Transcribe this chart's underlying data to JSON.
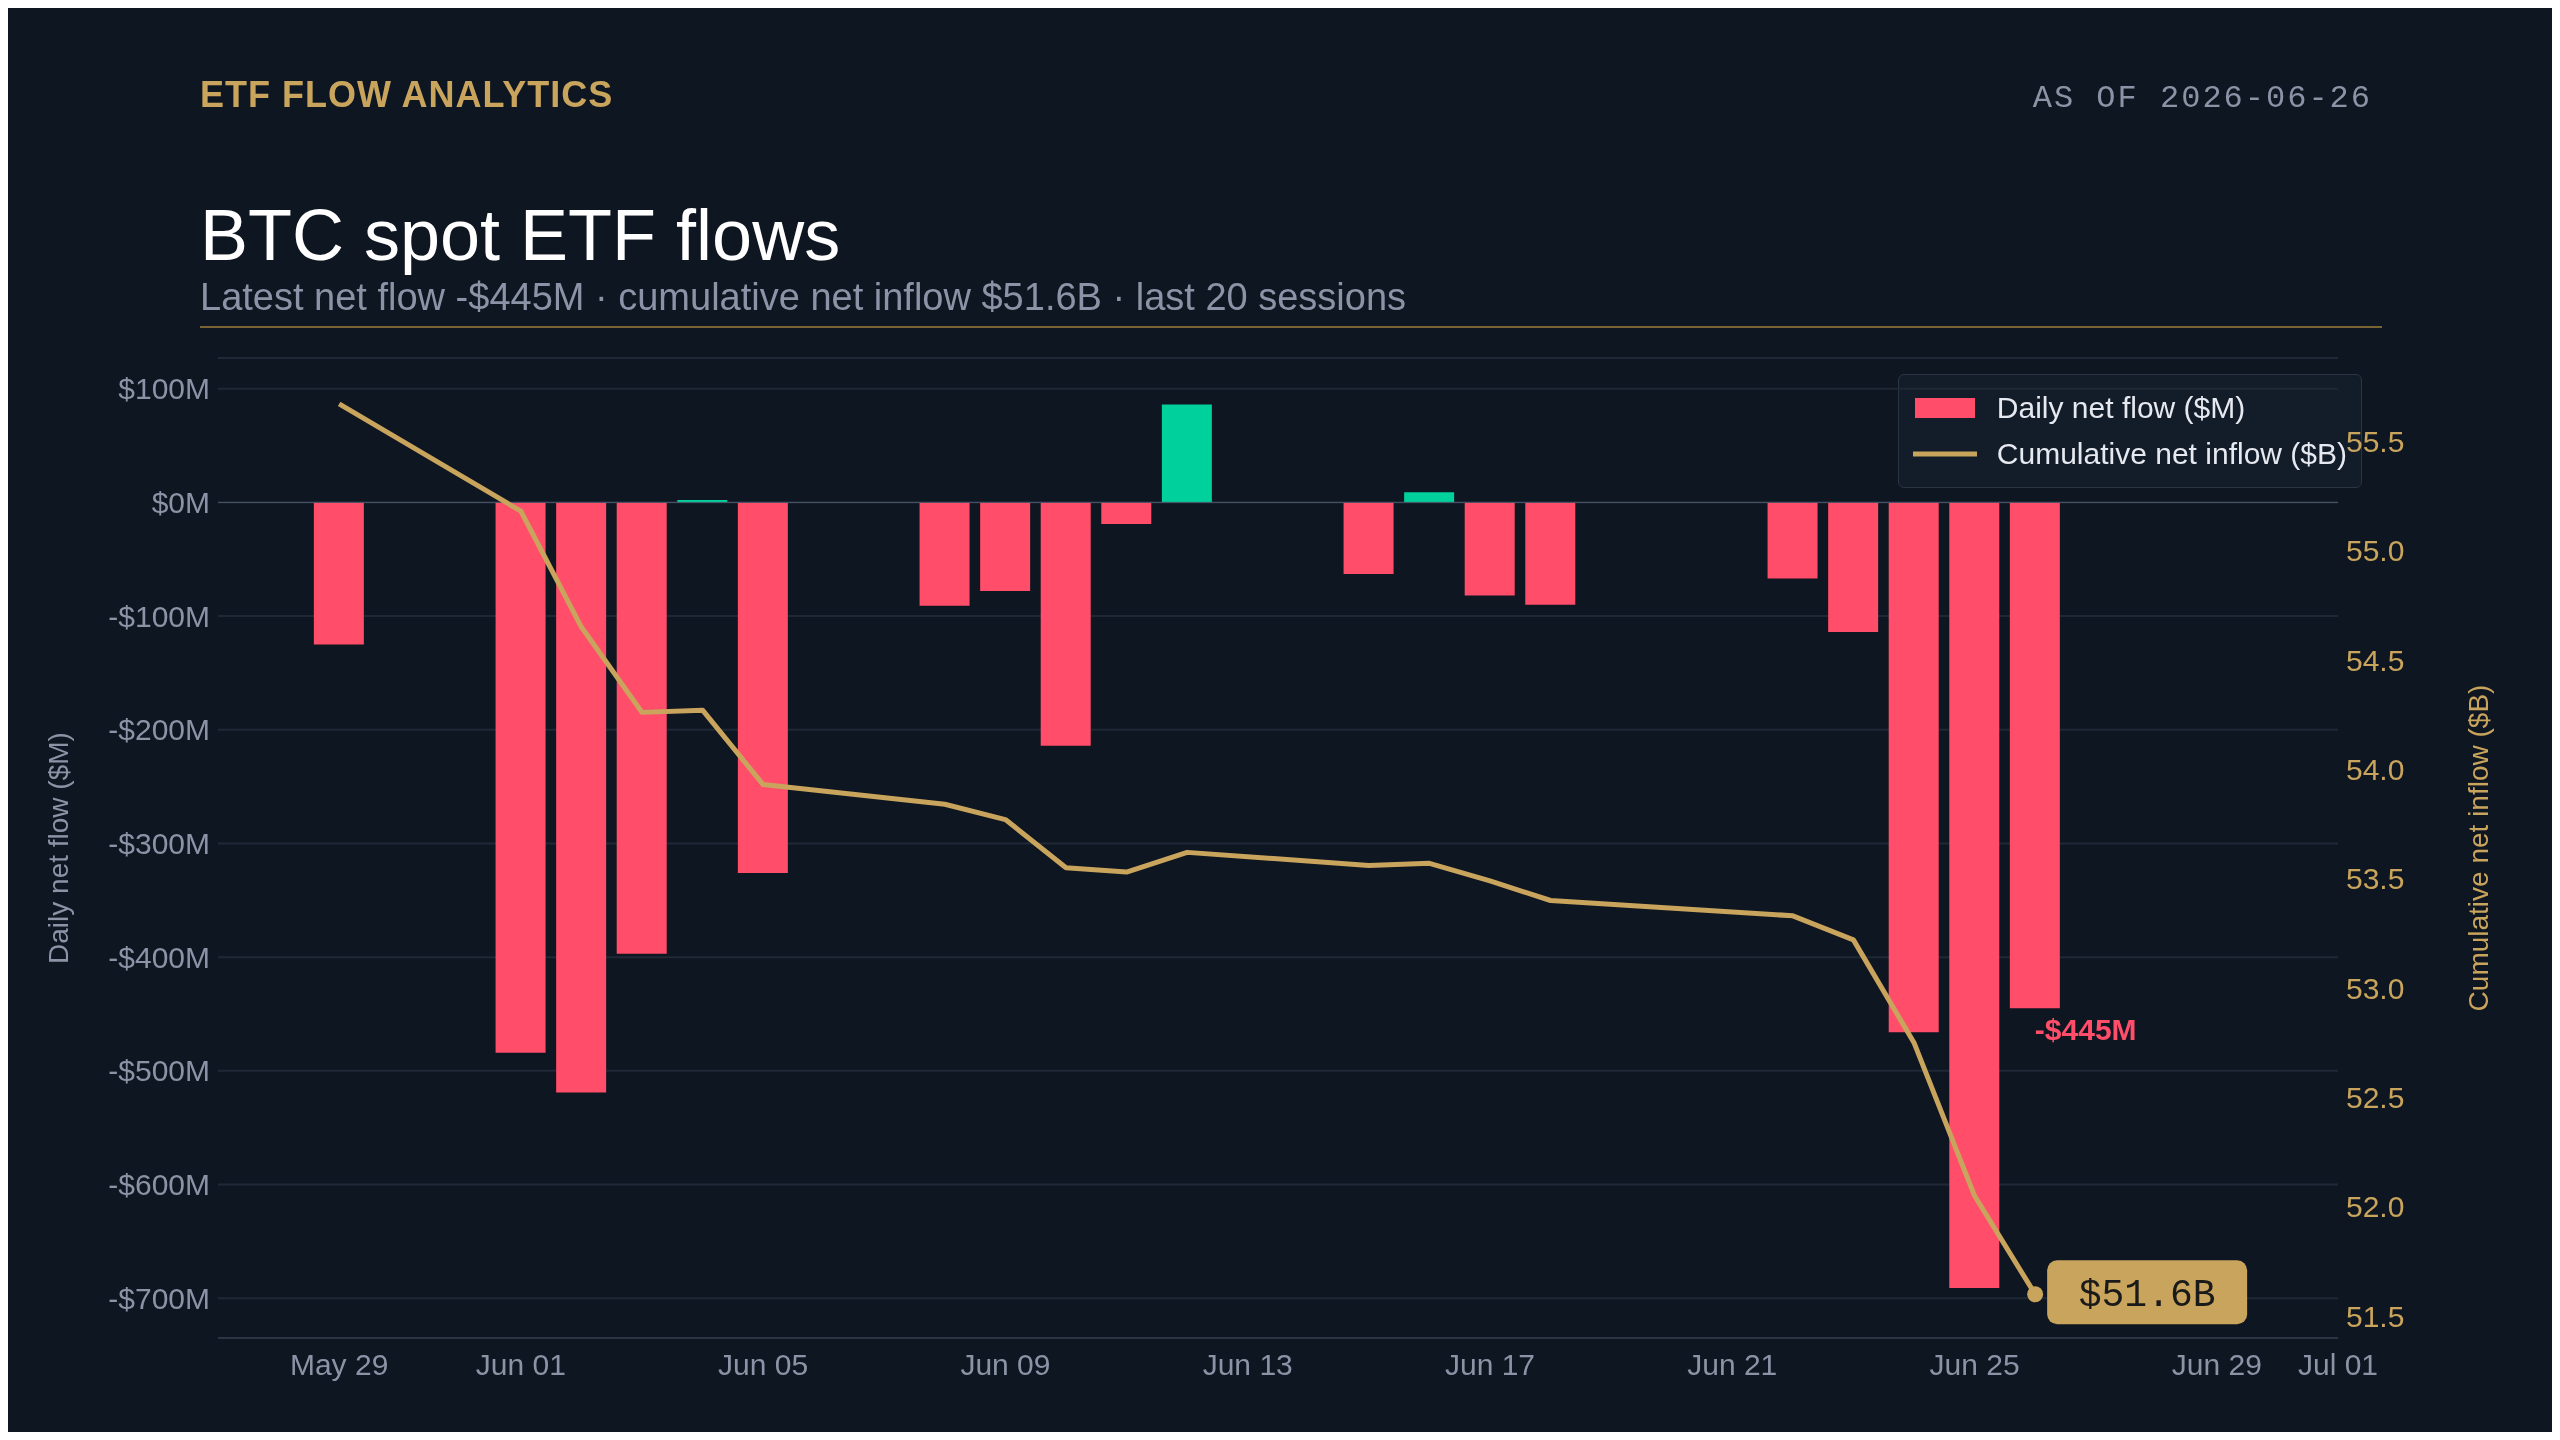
{
  "chart_data": {
    "type": "bar",
    "title": "BTC spot ETF flows",
    "subtitle": "Latest net flow -$445M · cumulative net inflow $51.6B · last 20 sessions",
    "ylabel": "Daily net flow ($M)",
    "y2label": "Cumulative net inflow ($B)",
    "annotations": [
      "ETF FLOW ANALYTICS",
      "AS OF 2026-06-26",
      "$51.6B"
    ],
    "x": [
      "--05-29",
      "--06-01",
      "--06-02",
      "--06-03",
      "--06-04",
      "--06-05",
      "--06-08",
      "--06-09",
      "--06-10",
      "--06-11",
      "--06-12",
      "--06-15",
      "--06-16",
      "--06-17",
      "--06-18",
      "--06-22",
      "--06-23",
      "--06-24",
      "--06-25",
      "--06-26"
    ],
    "series": [
      {
        "name": "Daily net flow ($M)",
        "color": "#ff4d6a",
        "values": [
          -125,
          -484,
          -519,
          -397,
          2,
          -326,
          -91,
          -78,
          -214,
          -19,
          86,
          -63,
          9,
          -82,
          -90,
          -67,
          -114,
          -466,
          -691,
          -445
        ],
        "colors": [
          "#ff4d6a",
          "#ff4d6a",
          "#ff4d6a",
          "#ff4d6a",
          "#00d09c",
          "#ff4d6a",
          "#ff4d6a",
          "#ff4d6a",
          "#ff4d6a",
          "#ff4d6a",
          "#00d09c",
          "#ff4d6a",
          "#00d09c",
          "#ff4d6a",
          "#ff4d6a",
          "#ff4d6a",
          "#ff4d6a",
          "#ff4d6a",
          "#ff4d6a",
          "#ff4d6a"
        ],
        "value_labels": [
          null,
          null,
          null,
          null,
          null,
          null,
          null,
          null,
          null,
          null,
          null,
          null,
          null,
          null,
          null,
          null,
          null,
          null,
          null,
          "-$445M"
        ]
      },
      {
        "type": "line",
        "name": "Cumulative net inflow ($B)",
        "color": "#c9a45c",
        "axis": "y2",
        "values": [
          55.67,
          55.18,
          54.65,
          54.26,
          54.27,
          53.93,
          53.84,
          53.77,
          53.55,
          53.53,
          53.62,
          53.56,
          53.57,
          53.49,
          53.4,
          53.33,
          53.22,
          52.75,
          52.05,
          51.6
        ]
      }
    ],
    "xlim": [
      "--05-27",
      "--07-01"
    ],
    "xticks": [
      {
        "value": "--05-29",
        "label": "May 29"
      },
      {
        "value": "--06-01",
        "label": "Jun 01"
      },
      {
        "value": "--06-05",
        "label": "Jun 05"
      },
      {
        "value": "--06-09",
        "label": "Jun 09"
      },
      {
        "value": "--06-13",
        "label": "Jun 13"
      },
      {
        "value": "--06-17",
        "label": "Jun 17"
      },
      {
        "value": "--06-21",
        "label": "Jun 21"
      },
      {
        "value": "--06-25",
        "label": "Jun 25"
      },
      {
        "value": "--06-29",
        "label": "Jun 29"
      },
      {
        "value": "--07-01",
        "label": "Jul 01"
      }
    ],
    "ylim": [
      -735,
      127
    ],
    "yticks": [
      {
        "value": 100,
        "label": "$100M"
      },
      {
        "value": 0,
        "label": "$0M"
      },
      {
        "value": -100,
        "label": "-$100M"
      },
      {
        "value": -200,
        "label": "-$200M"
      },
      {
        "value": -300,
        "label": "-$300M"
      },
      {
        "value": -400,
        "label": "-$400M"
      },
      {
        "value": -500,
        "label": "-$500M"
      },
      {
        "value": -600,
        "label": "-$600M"
      },
      {
        "value": -700,
        "label": "-$700M"
      }
    ],
    "y2lim": [
      51.4,
      55.88
    ],
    "y2ticks": [
      {
        "value": 51.5,
        "label": "51.5"
      },
      {
        "value": 52,
        "label": "52.0"
      },
      {
        "value": 52.5,
        "label": "52.5"
      },
      {
        "value": 53,
        "label": "53.0"
      },
      {
        "value": 53.5,
        "label": "53.5"
      },
      {
        "value": 54,
        "label": "54.0"
      },
      {
        "value": 54.5,
        "label": "54.5"
      },
      {
        "value": 55,
        "label": "55.0"
      },
      {
        "value": 55.5,
        "label": "55.5"
      }
    ],
    "grid": "y",
    "legend": "top right",
    "marker": "none",
    "line_style": "solid"
  }
}
